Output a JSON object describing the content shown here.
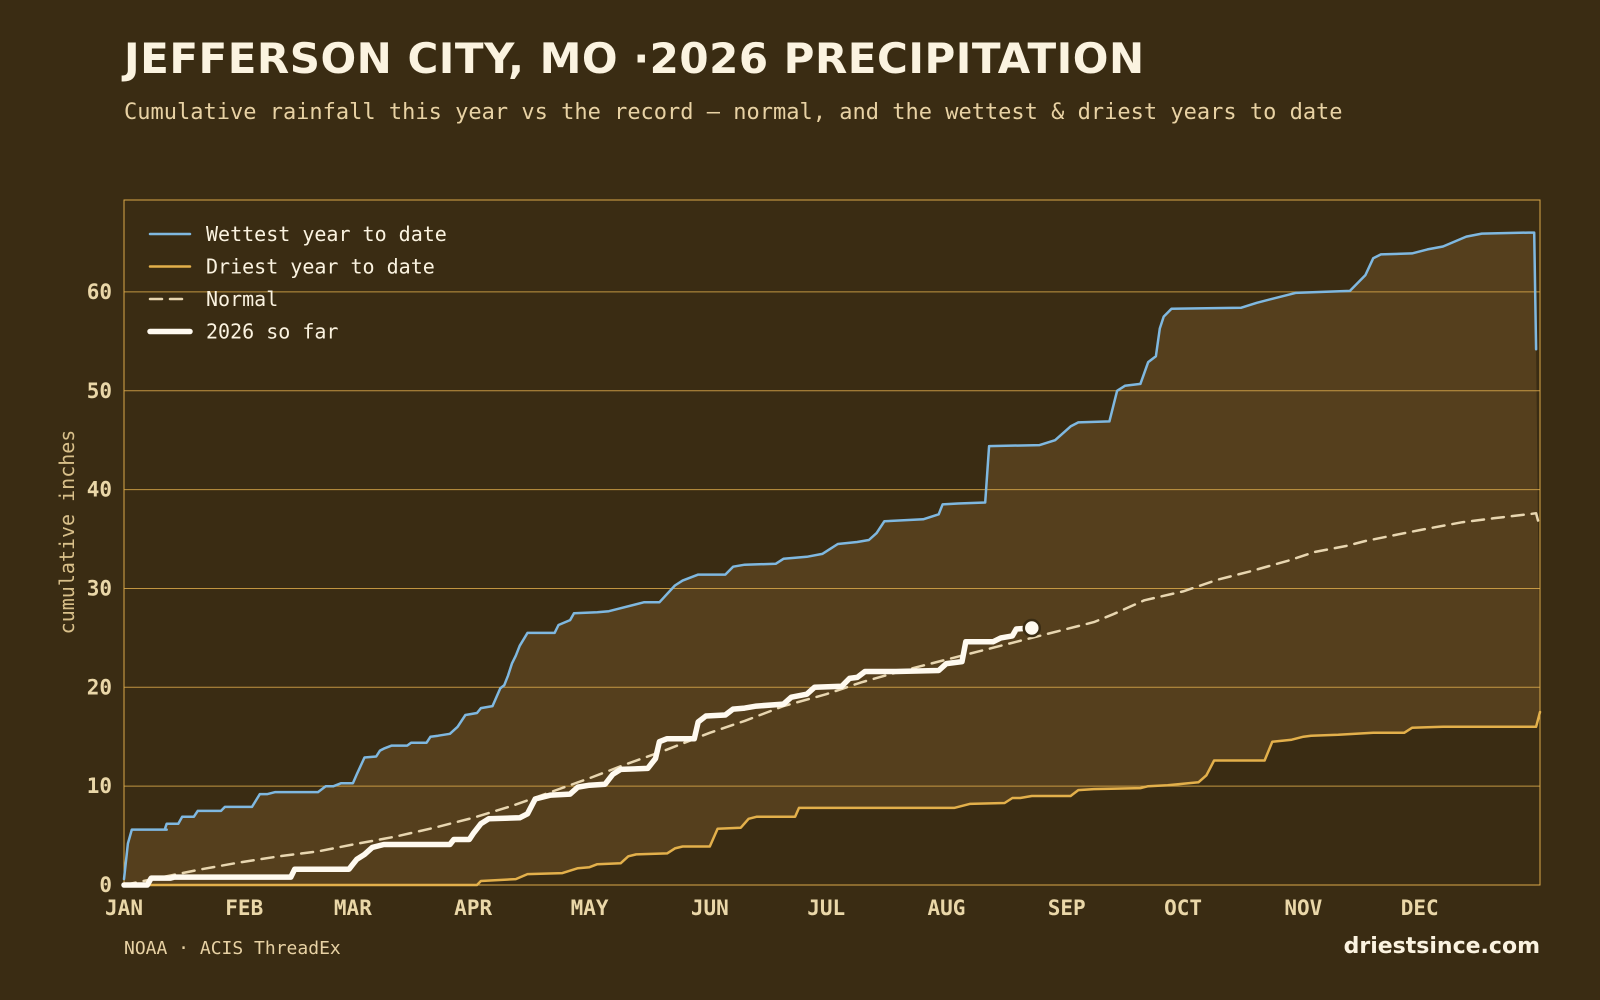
{
  "header": {
    "title": "JEFFERSON CITY, MO ·2026 PRECIPITATION",
    "subtitle": "Cumulative rainfall this year vs the record — normal, and the wettest & driest years to date"
  },
  "footer": {
    "source": "NOAA · ACIS ThreadEx",
    "site": "driestsince.com"
  },
  "colors": {
    "background": "#3a2c13",
    "band_fill": "#553f1d",
    "grid": "#d9a84a",
    "wettest": "#7fb8e0",
    "driest": "#e3b04b",
    "normal": "#e8d6b0",
    "current": "#fffaf0"
  },
  "chart_data": {
    "type": "line",
    "title": "JEFFERSON CITY, MO ·2026 PRECIPITATION",
    "xlabel": "",
    "ylabel": "cumulative inches",
    "xlim": [
      0,
      365
    ],
    "ylim": [
      0,
      69.3
    ],
    "y_ticks": [
      0,
      10,
      20,
      30,
      40,
      50,
      60
    ],
    "x_ticks": [
      {
        "label": "JAN",
        "day": 0
      },
      {
        "label": "FEB",
        "day": 31
      },
      {
        "label": "MAR",
        "day": 59
      },
      {
        "label": "APR",
        "day": 90
      },
      {
        "label": "MAY",
        "day": 120
      },
      {
        "label": "JUN",
        "day": 151
      },
      {
        "label": "JUL",
        "day": 181
      },
      {
        "label": "AUG",
        "day": 212
      },
      {
        "label": "SEP",
        "day": 243
      },
      {
        "label": "OCT",
        "day": 273
      },
      {
        "label": "NOV",
        "day": 304
      },
      {
        "label": "DEC",
        "day": 334
      }
    ],
    "grid": "horizontal",
    "legend_position": "top-left",
    "series": [
      {
        "name": "Wettest year to date",
        "style": "solid",
        "points": [
          [
            0,
            0.6
          ],
          [
            1,
            4.2
          ],
          [
            2,
            5.6
          ],
          [
            10,
            5.6
          ],
          [
            11,
            5.6
          ],
          [
            10.5,
            5.6
          ],
          [
            11,
            6.2
          ],
          [
            14,
            6.2
          ],
          [
            15,
            6.9
          ],
          [
            18,
            6.9
          ],
          [
            19,
            7.5
          ],
          [
            25,
            7.5
          ],
          [
            26,
            7.9
          ],
          [
            33,
            7.9
          ],
          [
            35,
            9.2
          ],
          [
            37,
            9.2
          ],
          [
            39,
            9.4
          ],
          [
            50,
            9.4
          ],
          [
            52,
            10.0
          ],
          [
            54,
            10.0
          ],
          [
            56,
            10.3
          ],
          [
            59,
            10.3
          ],
          [
            60,
            11.2
          ],
          [
            62,
            12.9
          ],
          [
            65,
            13.0
          ],
          [
            66,
            13.6
          ],
          [
            67,
            13.8
          ],
          [
            69,
            14.1
          ],
          [
            73,
            14.1
          ],
          [
            74,
            14.4
          ],
          [
            78,
            14.4
          ],
          [
            79,
            15.0
          ],
          [
            81,
            15.1
          ],
          [
            84,
            15.3
          ],
          [
            86,
            16.0
          ],
          [
            88,
            17.2
          ],
          [
            91,
            17.4
          ],
          [
            92,
            17.9
          ],
          [
            95,
            18.1
          ],
          [
            97,
            19.9
          ],
          [
            98,
            20.2
          ],
          [
            99,
            21.2
          ],
          [
            100,
            22.4
          ],
          [
            101,
            23.2
          ],
          [
            102,
            24.2
          ],
          [
            104,
            25.5
          ],
          [
            111,
            25.5
          ],
          [
            112,
            26.3
          ],
          [
            115,
            26.8
          ],
          [
            116,
            27.5
          ],
          [
            122,
            27.6
          ],
          [
            125,
            27.7
          ],
          [
            126,
            27.8
          ],
          [
            134,
            28.6
          ],
          [
            138,
            28.6
          ],
          [
            142,
            30.3
          ],
          [
            144,
            30.8
          ],
          [
            148,
            31.4
          ],
          [
            155,
            31.4
          ],
          [
            157,
            32.2
          ],
          [
            160,
            32.4
          ],
          [
            168,
            32.5
          ],
          [
            170,
            33.0
          ],
          [
            176,
            33.2
          ],
          [
            180,
            33.5
          ],
          [
            182,
            34.0
          ],
          [
            184,
            34.5
          ],
          [
            189,
            34.7
          ],
          [
            192,
            34.9
          ],
          [
            194,
            35.6
          ],
          [
            196,
            36.8
          ],
          [
            201,
            36.9
          ],
          [
            206,
            37.0
          ],
          [
            210,
            37.5
          ],
          [
            211,
            38.5
          ],
          [
            215,
            38.6
          ],
          [
            222,
            38.7
          ],
          [
            223,
            44.4
          ],
          [
            236,
            44.5
          ],
          [
            240,
            45.0
          ],
          [
            244,
            46.4
          ],
          [
            246,
            46.8
          ],
          [
            254,
            46.9
          ],
          [
            256,
            50.0
          ],
          [
            258,
            50.5
          ],
          [
            262,
            50.7
          ],
          [
            264,
            52.9
          ],
          [
            266,
            53.5
          ],
          [
            267,
            56.3
          ],
          [
            268,
            57.5
          ],
          [
            270,
            58.3
          ],
          [
            288,
            58.4
          ],
          [
            292,
            58.9
          ],
          [
            296,
            59.3
          ],
          [
            302,
            59.9
          ],
          [
            316,
            60.1
          ],
          [
            320,
            61.7
          ],
          [
            322,
            63.4
          ],
          [
            324,
            63.8
          ],
          [
            332,
            63.9
          ],
          [
            336,
            64.3
          ],
          [
            340,
            64.6
          ],
          [
            346,
            65.6
          ],
          [
            350,
            65.9
          ],
          [
            362,
            66.0
          ],
          [
            363.5,
            66.0
          ],
          [
            364,
            54.2
          ]
        ]
      },
      {
        "name": "Driest year to date",
        "style": "solid",
        "points": [
          [
            0,
            0.0
          ],
          [
            91,
            0.0
          ],
          [
            92,
            0.4
          ],
          [
            101,
            0.6
          ],
          [
            104,
            1.1
          ],
          [
            113,
            1.2
          ],
          [
            117,
            1.7
          ],
          [
            120,
            1.8
          ],
          [
            122,
            2.1
          ],
          [
            128,
            2.2
          ],
          [
            130,
            2.9
          ],
          [
            132,
            3.1
          ],
          [
            140,
            3.2
          ],
          [
            142,
            3.7
          ],
          [
            144,
            3.9
          ],
          [
            151,
            3.9
          ],
          [
            153,
            5.7
          ],
          [
            159,
            5.8
          ],
          [
            161,
            6.7
          ],
          [
            163,
            6.9
          ],
          [
            165,
            6.9
          ],
          [
            173,
            6.9
          ],
          [
            174,
            7.8
          ],
          [
            184,
            7.8
          ],
          [
            214,
            7.8
          ],
          [
            218,
            8.2
          ],
          [
            227,
            8.3
          ],
          [
            229,
            8.8
          ],
          [
            231,
            8.8
          ],
          [
            234,
            9.0
          ],
          [
            244,
            9.0
          ],
          [
            246,
            9.6
          ],
          [
            250,
            9.7
          ],
          [
            262,
            9.8
          ],
          [
            264,
            10.0
          ],
          [
            269,
            10.1
          ],
          [
            277,
            10.4
          ],
          [
            279,
            11.1
          ],
          [
            281,
            12.6
          ],
          [
            294,
            12.6
          ],
          [
            296,
            14.5
          ],
          [
            301,
            14.7
          ],
          [
            304,
            15.0
          ],
          [
            306,
            15.1
          ],
          [
            313,
            15.2
          ],
          [
            322,
            15.4
          ],
          [
            330,
            15.4
          ],
          [
            332,
            15.9
          ],
          [
            340,
            16.0
          ],
          [
            364,
            16.0
          ],
          [
            365,
            17.5
          ]
        ]
      },
      {
        "name": "Normal",
        "style": "dashed",
        "points": [
          [
            0,
            0.0
          ],
          [
            10,
            0.8
          ],
          [
            20,
            1.6
          ],
          [
            30,
            2.3
          ],
          [
            40,
            2.9
          ],
          [
            50,
            3.4
          ],
          [
            59,
            4.1
          ],
          [
            70,
            4.9
          ],
          [
            80,
            5.8
          ],
          [
            90,
            6.8
          ],
          [
            100,
            8.0
          ],
          [
            110,
            9.4
          ],
          [
            120,
            10.8
          ],
          [
            130,
            12.3
          ],
          [
            140,
            13.7
          ],
          [
            151,
            15.4
          ],
          [
            160,
            16.6
          ],
          [
            170,
            18.1
          ],
          [
            181,
            19.3
          ],
          [
            190,
            20.5
          ],
          [
            200,
            21.6
          ],
          [
            212,
            22.8
          ],
          [
            220,
            23.6
          ],
          [
            230,
            24.6
          ],
          [
            243,
            25.9
          ],
          [
            250,
            26.6
          ],
          [
            255,
            27.4
          ],
          [
            263,
            28.8
          ],
          [
            273,
            29.7
          ],
          [
            282,
            30.9
          ],
          [
            290,
            31.7
          ],
          [
            300,
            32.8
          ],
          [
            307,
            33.7
          ],
          [
            315,
            34.3
          ],
          [
            320,
            34.8
          ],
          [
            334,
            35.9
          ],
          [
            345,
            36.7
          ],
          [
            353,
            37.1
          ],
          [
            364,
            37.6
          ],
          [
            365,
            36.1
          ]
        ]
      },
      {
        "name": "2026 so far",
        "style": "bold",
        "points": [
          [
            0,
            0.0
          ],
          [
            6,
            0.0
          ],
          [
            7,
            0.7
          ],
          [
            12,
            0.7
          ],
          [
            13,
            0.8
          ],
          [
            19,
            0.8
          ],
          [
            43,
            0.8
          ],
          [
            44,
            1.6
          ],
          [
            52,
            1.6
          ],
          [
            58,
            1.6
          ],
          [
            59,
            2.1
          ],
          [
            60,
            2.6
          ],
          [
            62,
            3.1
          ],
          [
            64,
            3.8
          ],
          [
            67,
            4.1
          ],
          [
            75,
            4.1
          ],
          [
            84,
            4.1
          ],
          [
            85,
            4.6
          ],
          [
            89,
            4.6
          ],
          [
            90,
            5.2
          ],
          [
            92,
            6.2
          ],
          [
            94,
            6.7
          ],
          [
            102,
            6.8
          ],
          [
            104,
            7.2
          ],
          [
            106,
            8.7
          ],
          [
            110,
            9.1
          ],
          [
            115,
            9.2
          ],
          [
            117,
            9.9
          ],
          [
            120,
            10.1
          ],
          [
            124,
            10.2
          ],
          [
            126,
            11.2
          ],
          [
            128,
            11.7
          ],
          [
            135,
            11.8
          ],
          [
            137,
            12.8
          ],
          [
            138,
            14.5
          ],
          [
            140,
            14.8
          ],
          [
            147,
            14.8
          ],
          [
            148,
            16.5
          ],
          [
            150,
            17.1
          ],
          [
            155,
            17.2
          ],
          [
            157,
            17.8
          ],
          [
            160,
            17.9
          ],
          [
            163,
            18.1
          ],
          [
            170,
            18.3
          ],
          [
            172,
            19.0
          ],
          [
            176,
            19.3
          ],
          [
            178,
            20.0
          ],
          [
            185,
            20.1
          ],
          [
            187,
            20.9
          ],
          [
            189,
            21.0
          ],
          [
            191,
            21.6
          ],
          [
            199,
            21.6
          ],
          [
            210,
            21.7
          ],
          [
            212,
            22.4
          ],
          [
            216,
            22.6
          ],
          [
            217,
            24.6
          ],
          [
            224,
            24.6
          ],
          [
            226,
            25.0
          ],
          [
            229,
            25.2
          ],
          [
            230,
            25.9
          ],
          [
            234,
            26.0
          ]
        ]
      }
    ],
    "current_point": [
      234,
      26.0
    ]
  }
}
